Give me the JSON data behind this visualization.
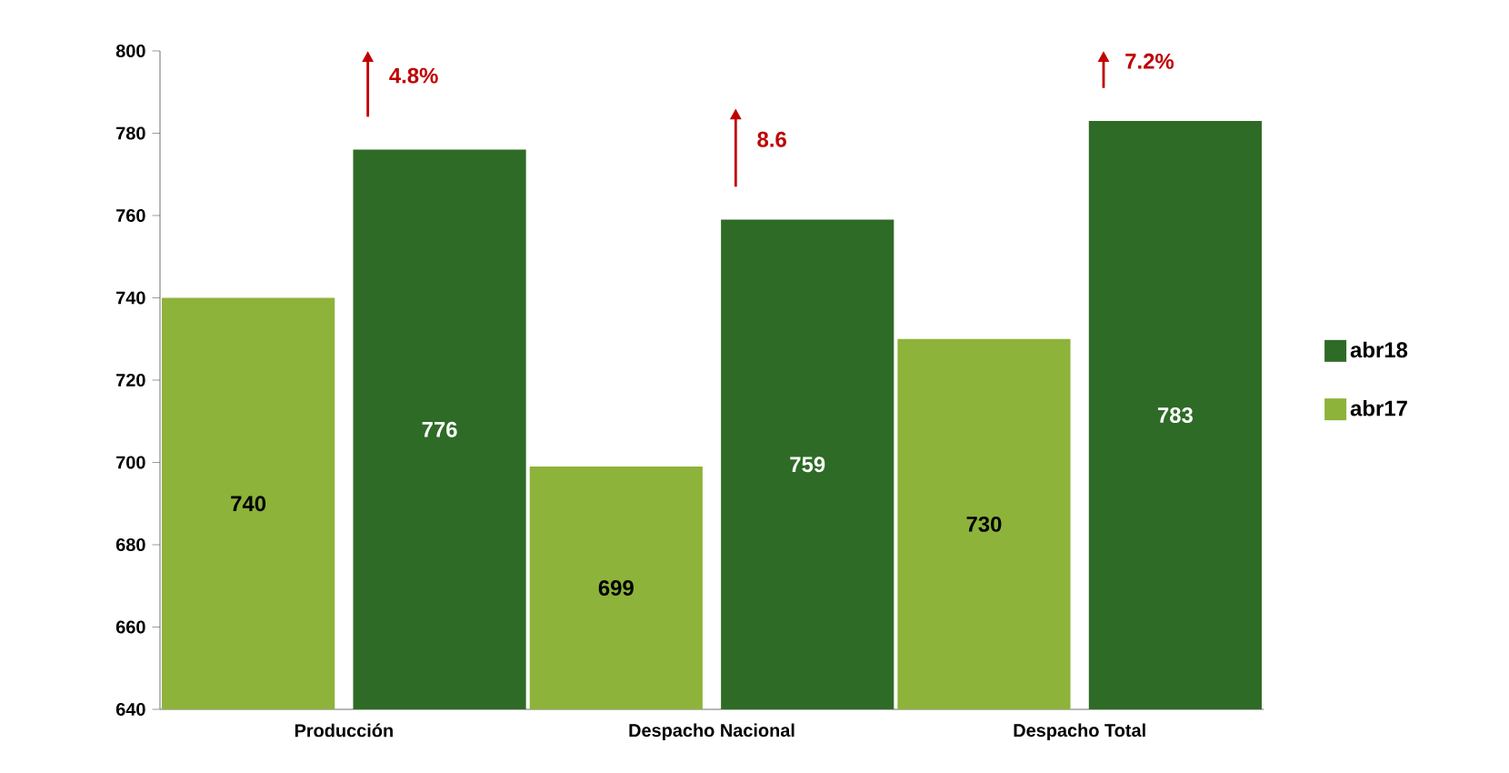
{
  "chart_data": {
    "type": "bar",
    "categories": [
      "Producción",
      "Despacho Nacional",
      "Despacho Total"
    ],
    "series": [
      {
        "name": "abr17",
        "color": "#8db33a",
        "values": [
          740,
          699,
          730
        ]
      },
      {
        "name": "abr18",
        "color": "#2e6b26",
        "values": [
          776,
          759,
          783
        ]
      }
    ],
    "ylim": [
      640,
      800
    ],
    "yticks": [
      640,
      660,
      680,
      700,
      720,
      740,
      760,
      780,
      800
    ],
    "data_labels": true,
    "legend": "right",
    "grid": false,
    "annotations": [
      "4.8%",
      "8.6",
      "7.2%"
    ]
  }
}
